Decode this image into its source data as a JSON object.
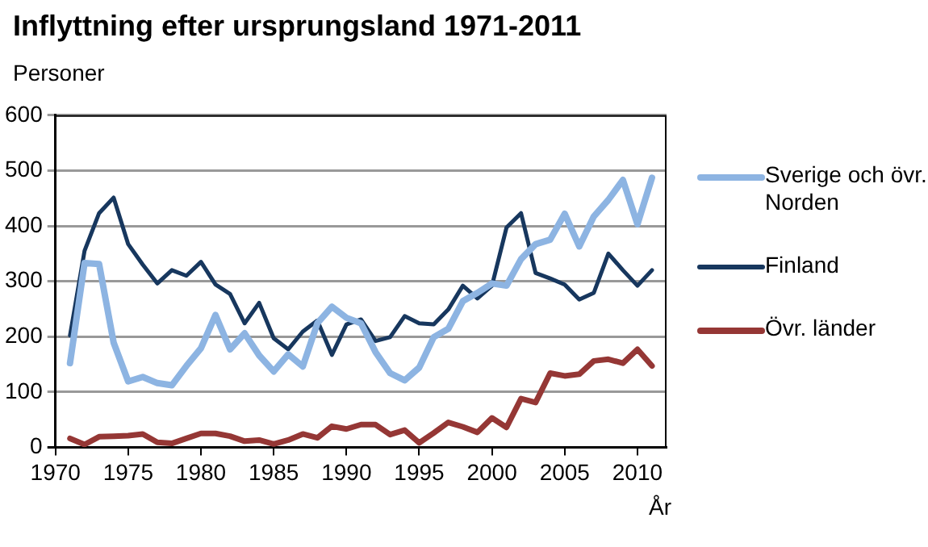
{
  "chart_data": {
    "type": "line",
    "title": "Inflyttning efter ursprungsland 1971-2011",
    "ylabel": "Personer",
    "xlabel": "År",
    "x": [
      1971,
      1972,
      1973,
      1974,
      1975,
      1976,
      1977,
      1978,
      1979,
      1980,
      1981,
      1982,
      1983,
      1984,
      1985,
      1986,
      1987,
      1988,
      1989,
      1990,
      1991,
      1992,
      1993,
      1994,
      1995,
      1996,
      1997,
      1998,
      1999,
      2000,
      2001,
      2002,
      2003,
      2004,
      2005,
      2006,
      2007,
      2008,
      2009,
      2010,
      2011
    ],
    "series": [
      {
        "name": "Sverige och övr. Norden",
        "color": "#8db4e2",
        "values": [
          152,
          333,
          331,
          189,
          119,
          127,
          116,
          112,
          147,
          179,
          239,
          177,
          206,
          166,
          137,
          168,
          146,
          224,
          254,
          234,
          224,
          172,
          134,
          121,
          144,
          199,
          214,
          264,
          279,
          296,
          292,
          340,
          367,
          375,
          422,
          363,
          417,
          447,
          483,
          403,
          487
        ]
      },
      {
        "name": "Finland",
        "color": "#17375e",
        "values": [
          202,
          355,
          423,
          451,
          367,
          330,
          296,
          320,
          310,
          335,
          294,
          277,
          224,
          261,
          197,
          177,
          209,
          229,
          167,
          222,
          231,
          192,
          199,
          237,
          224,
          222,
          249,
          292,
          269,
          292,
          397,
          423,
          315,
          305,
          294,
          267,
          279,
          350,
          320,
          292,
          320
        ]
      },
      {
        "name": "Övr. länder",
        "color": "#953735",
        "values": [
          16,
          5,
          19,
          20,
          21,
          24,
          9,
          7,
          16,
          25,
          25,
          20,
          11,
          13,
          6,
          13,
          24,
          17,
          38,
          33,
          41,
          41,
          23,
          31,
          8,
          26,
          45,
          37,
          27,
          53,
          36,
          88,
          81,
          134,
          129,
          132,
          156,
          159,
          152,
          177,
          147
        ]
      }
    ],
    "xlim": [
      1970,
      2012
    ],
    "xticks": [
      1970,
      1975,
      1980,
      1985,
      1990,
      1995,
      2000,
      2005,
      2010
    ],
    "ylim": [
      0,
      600
    ],
    "yticks": [
      0,
      100,
      200,
      300,
      400,
      500,
      600
    ],
    "grid": "y",
    "legend": "right",
    "line_style": "solid",
    "marker": "none"
  }
}
